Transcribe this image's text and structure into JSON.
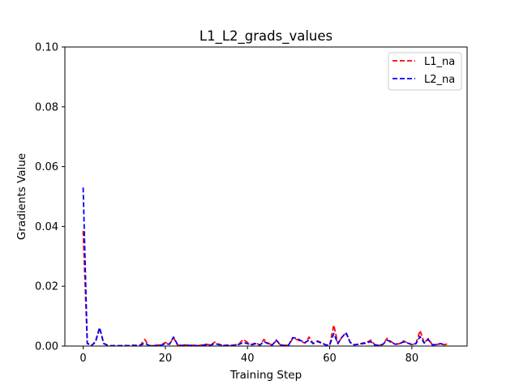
{
  "chart_data": {
    "type": "line",
    "title": "L1_L2_grads_values",
    "xlabel": "Training Step",
    "ylabel": "Gradients Value",
    "xlim": [
      -4.45,
      93.45
    ],
    "ylim": [
      0,
      0.1
    ],
    "xticks": [
      0,
      20,
      40,
      60,
      80
    ],
    "xtick_labels": [
      "0",
      "20",
      "40",
      "60",
      "80"
    ],
    "yticks": [
      0,
      0.02,
      0.04,
      0.06,
      0.08,
      0.1
    ],
    "ytick_labels": [
      "0.00",
      "0.02",
      "0.04",
      "0.06",
      "0.08",
      "0.10"
    ],
    "grid": false,
    "legend_position": "top-right",
    "series": [
      {
        "name": "L1_na",
        "color": "#ff0000",
        "linestyle": "dashed",
        "x": [
          0,
          1,
          2,
          3,
          4,
          5,
          6,
          7,
          8,
          9,
          10,
          11,
          12,
          13,
          14,
          15,
          16,
          17,
          18,
          19,
          20,
          21,
          22,
          23,
          24,
          25,
          26,
          27,
          28,
          29,
          30,
          31,
          32,
          33,
          34,
          35,
          36,
          37,
          38,
          39,
          40,
          41,
          42,
          43,
          44,
          45,
          46,
          47,
          48,
          49,
          50,
          51,
          52,
          53,
          54,
          55,
          56,
          57,
          58,
          59,
          60,
          61,
          62,
          63,
          64,
          65,
          66,
          67,
          68,
          69,
          70,
          71,
          72,
          73,
          74,
          75,
          76,
          77,
          78,
          79,
          80,
          81,
          82,
          83,
          84,
          85,
          86,
          87,
          88,
          89
        ],
        "values": [
          0.0385,
          0.0008,
          0.0002,
          0.0012,
          0.006,
          0.0008,
          0.0002,
          0.0001,
          0.0002,
          0.0001,
          0.0002,
          0.0001,
          0.0003,
          0.0002,
          0.0004,
          0.0022,
          0.0002,
          0.0001,
          0.0003,
          0.0004,
          0.0012,
          0.0006,
          0.0028,
          0.0003,
          0.0002,
          0.0004,
          0.0002,
          0.0003,
          0.0001,
          0.0004,
          0.0006,
          0.0003,
          0.0013,
          0.0006,
          0.0002,
          0.0003,
          0.0002,
          0.0004,
          0.0008,
          0.0022,
          0.0012,
          0.0005,
          0.0011,
          0.0003,
          0.0022,
          0.001,
          0.0003,
          0.0018,
          0.0004,
          0.0002,
          0.0003,
          0.0025,
          0.0022,
          0.0015,
          0.001,
          0.003,
          0.0008,
          0.0017,
          0.0012,
          0.0004,
          0.0003,
          0.007,
          0.0008,
          0.003,
          0.0042,
          0.0012,
          0.0004,
          0.0006,
          0.001,
          0.0012,
          0.002,
          0.0004,
          0.0002,
          0.0006,
          0.0026,
          0.0014,
          0.0006,
          0.0008,
          0.0017,
          0.001,
          0.0005,
          0.0008,
          0.0052,
          0.001,
          0.0025,
          0.0004,
          0.0005,
          0.0008,
          0.0004,
          0.001
        ]
      },
      {
        "name": "L2_na",
        "color": "#0000ff",
        "linestyle": "dashed",
        "x": [
          0,
          1,
          2,
          3,
          4,
          5,
          6,
          7,
          8,
          9,
          10,
          11,
          12,
          13,
          14,
          15,
          16,
          17,
          18,
          19,
          20,
          21,
          22,
          23,
          24,
          25,
          26,
          27,
          28,
          29,
          30,
          31,
          32,
          33,
          34,
          35,
          36,
          37,
          38,
          39,
          40,
          41,
          42,
          43,
          44,
          45,
          46,
          47,
          48,
          49,
          50,
          51,
          52,
          53,
          54,
          55,
          56,
          57,
          58,
          59,
          60,
          61,
          62,
          63,
          64,
          65,
          66,
          67,
          68,
          69,
          70,
          71,
          72,
          73,
          74,
          75,
          76,
          77,
          78,
          79,
          80,
          81,
          82,
          83,
          84,
          85,
          86,
          87,
          88
        ],
        "values": [
          0.053,
          0.001,
          0.0001,
          0.0015,
          0.0062,
          0.0009,
          0.0002,
          0.0001,
          0.0001,
          0.0001,
          0.0002,
          0.0001,
          0.0002,
          0.0002,
          0.0003,
          0.001,
          0.0002,
          0.0001,
          0.0002,
          0.0003,
          0.0008,
          0.0006,
          0.003,
          0.0004,
          0.0002,
          0.0003,
          0.0002,
          0.0002,
          0.0001,
          0.0003,
          0.0004,
          0.0003,
          0.0008,
          0.0005,
          0.0002,
          0.0002,
          0.0002,
          0.0003,
          0.0006,
          0.0012,
          0.0008,
          0.0004,
          0.0008,
          0.0003,
          0.0015,
          0.0008,
          0.0003,
          0.002,
          0.0004,
          0.0002,
          0.0003,
          0.0028,
          0.0026,
          0.0018,
          0.0012,
          0.002,
          0.0008,
          0.0015,
          0.001,
          0.0004,
          0.0003,
          0.0042,
          0.0008,
          0.003,
          0.0045,
          0.0012,
          0.0004,
          0.0006,
          0.0008,
          0.001,
          0.0015,
          0.0004,
          0.0002,
          0.0006,
          0.002,
          0.0012,
          0.0006,
          0.0008,
          0.0014,
          0.001,
          0.0005,
          0.0008,
          0.0032,
          0.001,
          0.0022,
          0.0004,
          0.0005,
          0.0008,
          0.0004
        ]
      }
    ]
  }
}
